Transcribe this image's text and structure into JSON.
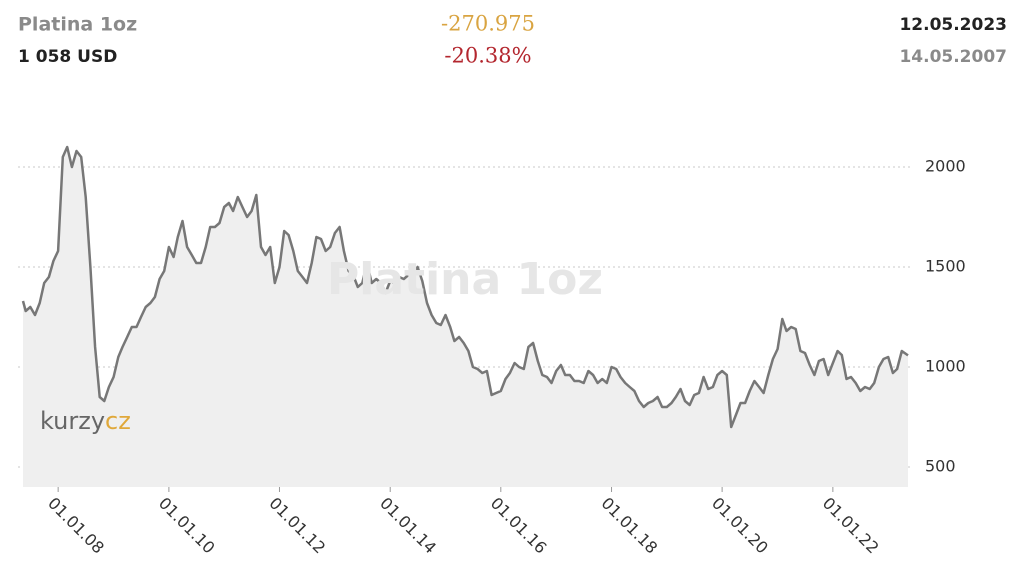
{
  "chart_data": {
    "type": "line",
    "title": "Platina 1oz",
    "price": "1 058 USD",
    "change": "-270.975",
    "change_pct": "-20.38%",
    "end_date": "12.05.2023",
    "start_date": "14.05.2007",
    "watermark": "Platina 1oz",
    "logo": [
      "kurzy",
      "cz"
    ],
    "color": "#777777",
    "fill": "#efefef",
    "grid": true,
    "x": [
      "2007-05-14",
      "2007-06-01",
      "2007-07-01",
      "2007-08-01",
      "2007-09-01",
      "2007-10-01",
      "2007-11-01",
      "2007-12-01",
      "2008-01-01",
      "2008-02-01",
      "2008-03-01",
      "2008-04-01",
      "2008-05-01",
      "2008-06-01",
      "2008-07-01",
      "2008-08-01",
      "2008-09-01",
      "2008-10-01",
      "2008-11-01",
      "2008-12-01",
      "2009-01-01",
      "2009-02-01",
      "2009-03-01",
      "2009-04-01",
      "2009-05-01",
      "2009-06-01",
      "2009-07-01",
      "2009-08-01",
      "2009-09-01",
      "2009-10-01",
      "2009-11-01",
      "2009-12-01",
      "2010-01-01",
      "2010-02-01",
      "2010-03-01",
      "2010-04-01",
      "2010-05-01",
      "2010-06-01",
      "2010-07-01",
      "2010-08-01",
      "2010-09-01",
      "2010-10-01",
      "2010-11-01",
      "2010-12-01",
      "2011-01-01",
      "2011-02-01",
      "2011-03-01",
      "2011-04-01",
      "2011-05-01",
      "2011-06-01",
      "2011-07-01",
      "2011-08-01",
      "2011-09-01",
      "2011-10-01",
      "2011-11-01",
      "2011-12-01",
      "2012-01-01",
      "2012-02-01",
      "2012-03-01",
      "2012-04-01",
      "2012-05-01",
      "2012-06-01",
      "2012-07-01",
      "2012-08-01",
      "2012-09-01",
      "2012-10-01",
      "2012-11-01",
      "2012-12-01",
      "2013-01-01",
      "2013-02-01",
      "2013-03-01",
      "2013-04-01",
      "2013-05-01",
      "2013-06-01",
      "2013-07-01",
      "2013-08-01",
      "2013-09-01",
      "2013-10-01",
      "2013-11-01",
      "2013-12-01",
      "2014-01-01",
      "2014-02-01",
      "2014-03-01",
      "2014-04-01",
      "2014-05-01",
      "2014-06-01",
      "2014-07-01",
      "2014-08-01",
      "2014-09-01",
      "2014-10-01",
      "2014-11-01",
      "2014-12-01",
      "2015-01-01",
      "2015-02-01",
      "2015-03-01",
      "2015-04-01",
      "2015-05-01",
      "2015-06-01",
      "2015-07-01",
      "2015-08-01",
      "2015-09-01",
      "2015-10-01",
      "2015-11-01",
      "2015-12-01",
      "2016-01-01",
      "2016-02-01",
      "2016-03-01",
      "2016-04-01",
      "2016-05-01",
      "2016-06-01",
      "2016-07-01",
      "2016-08-01",
      "2016-09-01",
      "2016-10-01",
      "2016-11-01",
      "2016-12-01",
      "2017-01-01",
      "2017-02-01",
      "2017-03-01",
      "2017-04-01",
      "2017-05-01",
      "2017-06-01",
      "2017-07-01",
      "2017-08-01",
      "2017-09-01",
      "2017-10-01",
      "2017-11-01",
      "2017-12-01",
      "2018-01-01",
      "2018-02-01",
      "2018-03-01",
      "2018-04-01",
      "2018-05-01",
      "2018-06-01",
      "2018-07-01",
      "2018-08-01",
      "2018-09-01",
      "2018-10-01",
      "2018-11-01",
      "2018-12-01",
      "2019-01-01",
      "2019-02-01",
      "2019-03-01",
      "2019-04-01",
      "2019-05-01",
      "2019-06-01",
      "2019-07-01",
      "2019-08-01",
      "2019-09-01",
      "2019-10-01",
      "2019-11-01",
      "2019-12-01",
      "2020-01-01",
      "2020-02-01",
      "2020-03-01",
      "2020-04-01",
      "2020-05-01",
      "2020-06-01",
      "2020-07-01",
      "2020-08-01",
      "2020-09-01",
      "2020-10-01",
      "2020-11-01",
      "2020-12-01",
      "2021-01-01",
      "2021-02-01",
      "2021-03-01",
      "2021-04-01",
      "2021-05-01",
      "2021-06-01",
      "2021-07-01",
      "2021-08-01",
      "2021-09-01",
      "2021-10-01",
      "2021-11-01",
      "2021-12-01",
      "2022-01-01",
      "2022-02-01",
      "2022-03-01",
      "2022-04-01",
      "2022-05-01",
      "2022-06-01",
      "2022-07-01",
      "2022-08-01",
      "2022-09-01",
      "2022-10-01",
      "2022-11-01",
      "2022-12-01",
      "2023-01-01",
      "2023-02-01",
      "2023-03-01",
      "2023-04-01",
      "2023-05-12"
    ],
    "values": [
      1330,
      1280,
      1300,
      1260,
      1320,
      1420,
      1450,
      1530,
      1580,
      2050,
      2100,
      2000,
      2080,
      2050,
      1850,
      1500,
      1100,
      850,
      830,
      900,
      950,
      1050,
      1100,
      1150,
      1200,
      1200,
      1250,
      1300,
      1320,
      1350,
      1440,
      1480,
      1600,
      1550,
      1650,
      1730,
      1600,
      1560,
      1520,
      1520,
      1600,
      1700,
      1700,
      1720,
      1800,
      1820,
      1780,
      1850,
      1800,
      1750,
      1780,
      1860,
      1600,
      1560,
      1600,
      1420,
      1500,
      1680,
      1660,
      1580,
      1480,
      1450,
      1420,
      1520,
      1650,
      1640,
      1580,
      1600,
      1670,
      1700,
      1580,
      1480,
      1460,
      1400,
      1420,
      1520,
      1420,
      1440,
      1420,
      1370,
      1430,
      1420,
      1450,
      1440,
      1460,
      1470,
      1500,
      1430,
      1320,
      1260,
      1220,
      1210,
      1260,
      1200,
      1130,
      1150,
      1120,
      1080,
      1000,
      990,
      970,
      980,
      860,
      870,
      880,
      940,
      970,
      1020,
      1000,
      990,
      1100,
      1120,
      1030,
      960,
      950,
      920,
      980,
      1010,
      960,
      960,
      930,
      930,
      920,
      980,
      960,
      920,
      940,
      920,
      1000,
      990,
      950,
      920,
      900,
      880,
      830,
      800,
      820,
      830,
      850,
      800,
      800,
      820,
      850,
      890,
      830,
      810,
      860,
      870,
      950,
      890,
      900,
      960,
      980,
      960,
      700,
      760,
      820,
      820,
      880,
      930,
      900,
      870,
      960,
      1040,
      1090,
      1240,
      1180,
      1200,
      1190,
      1080,
      1070,
      1010,
      960,
      1030,
      1040,
      960,
      1020,
      1080,
      1060,
      940,
      950,
      920,
      880,
      900,
      890,
      920,
      1000,
      1040,
      1050,
      970,
      990,
      1080,
      1058
    ],
    "xlim": [
      "2007-05-14",
      "2023-05-12"
    ],
    "xticks": [
      {
        "value": "2008-01-01",
        "label": "01.01.08"
      },
      {
        "value": "2010-01-01",
        "label": "01.01.10"
      },
      {
        "value": "2012-01-01",
        "label": "01.01.12"
      },
      {
        "value": "2014-01-01",
        "label": "01.01.14"
      },
      {
        "value": "2016-01-01",
        "label": "01.01.16"
      },
      {
        "value": "2018-01-01",
        "label": "01.01.18"
      },
      {
        "value": "2020-01-01",
        "label": "01.01.20"
      },
      {
        "value": "2022-01-01",
        "label": "01.01.22"
      }
    ],
    "ylim": [
      400,
      2350
    ],
    "yticks": [
      500,
      1000,
      1500,
      2000
    ]
  }
}
